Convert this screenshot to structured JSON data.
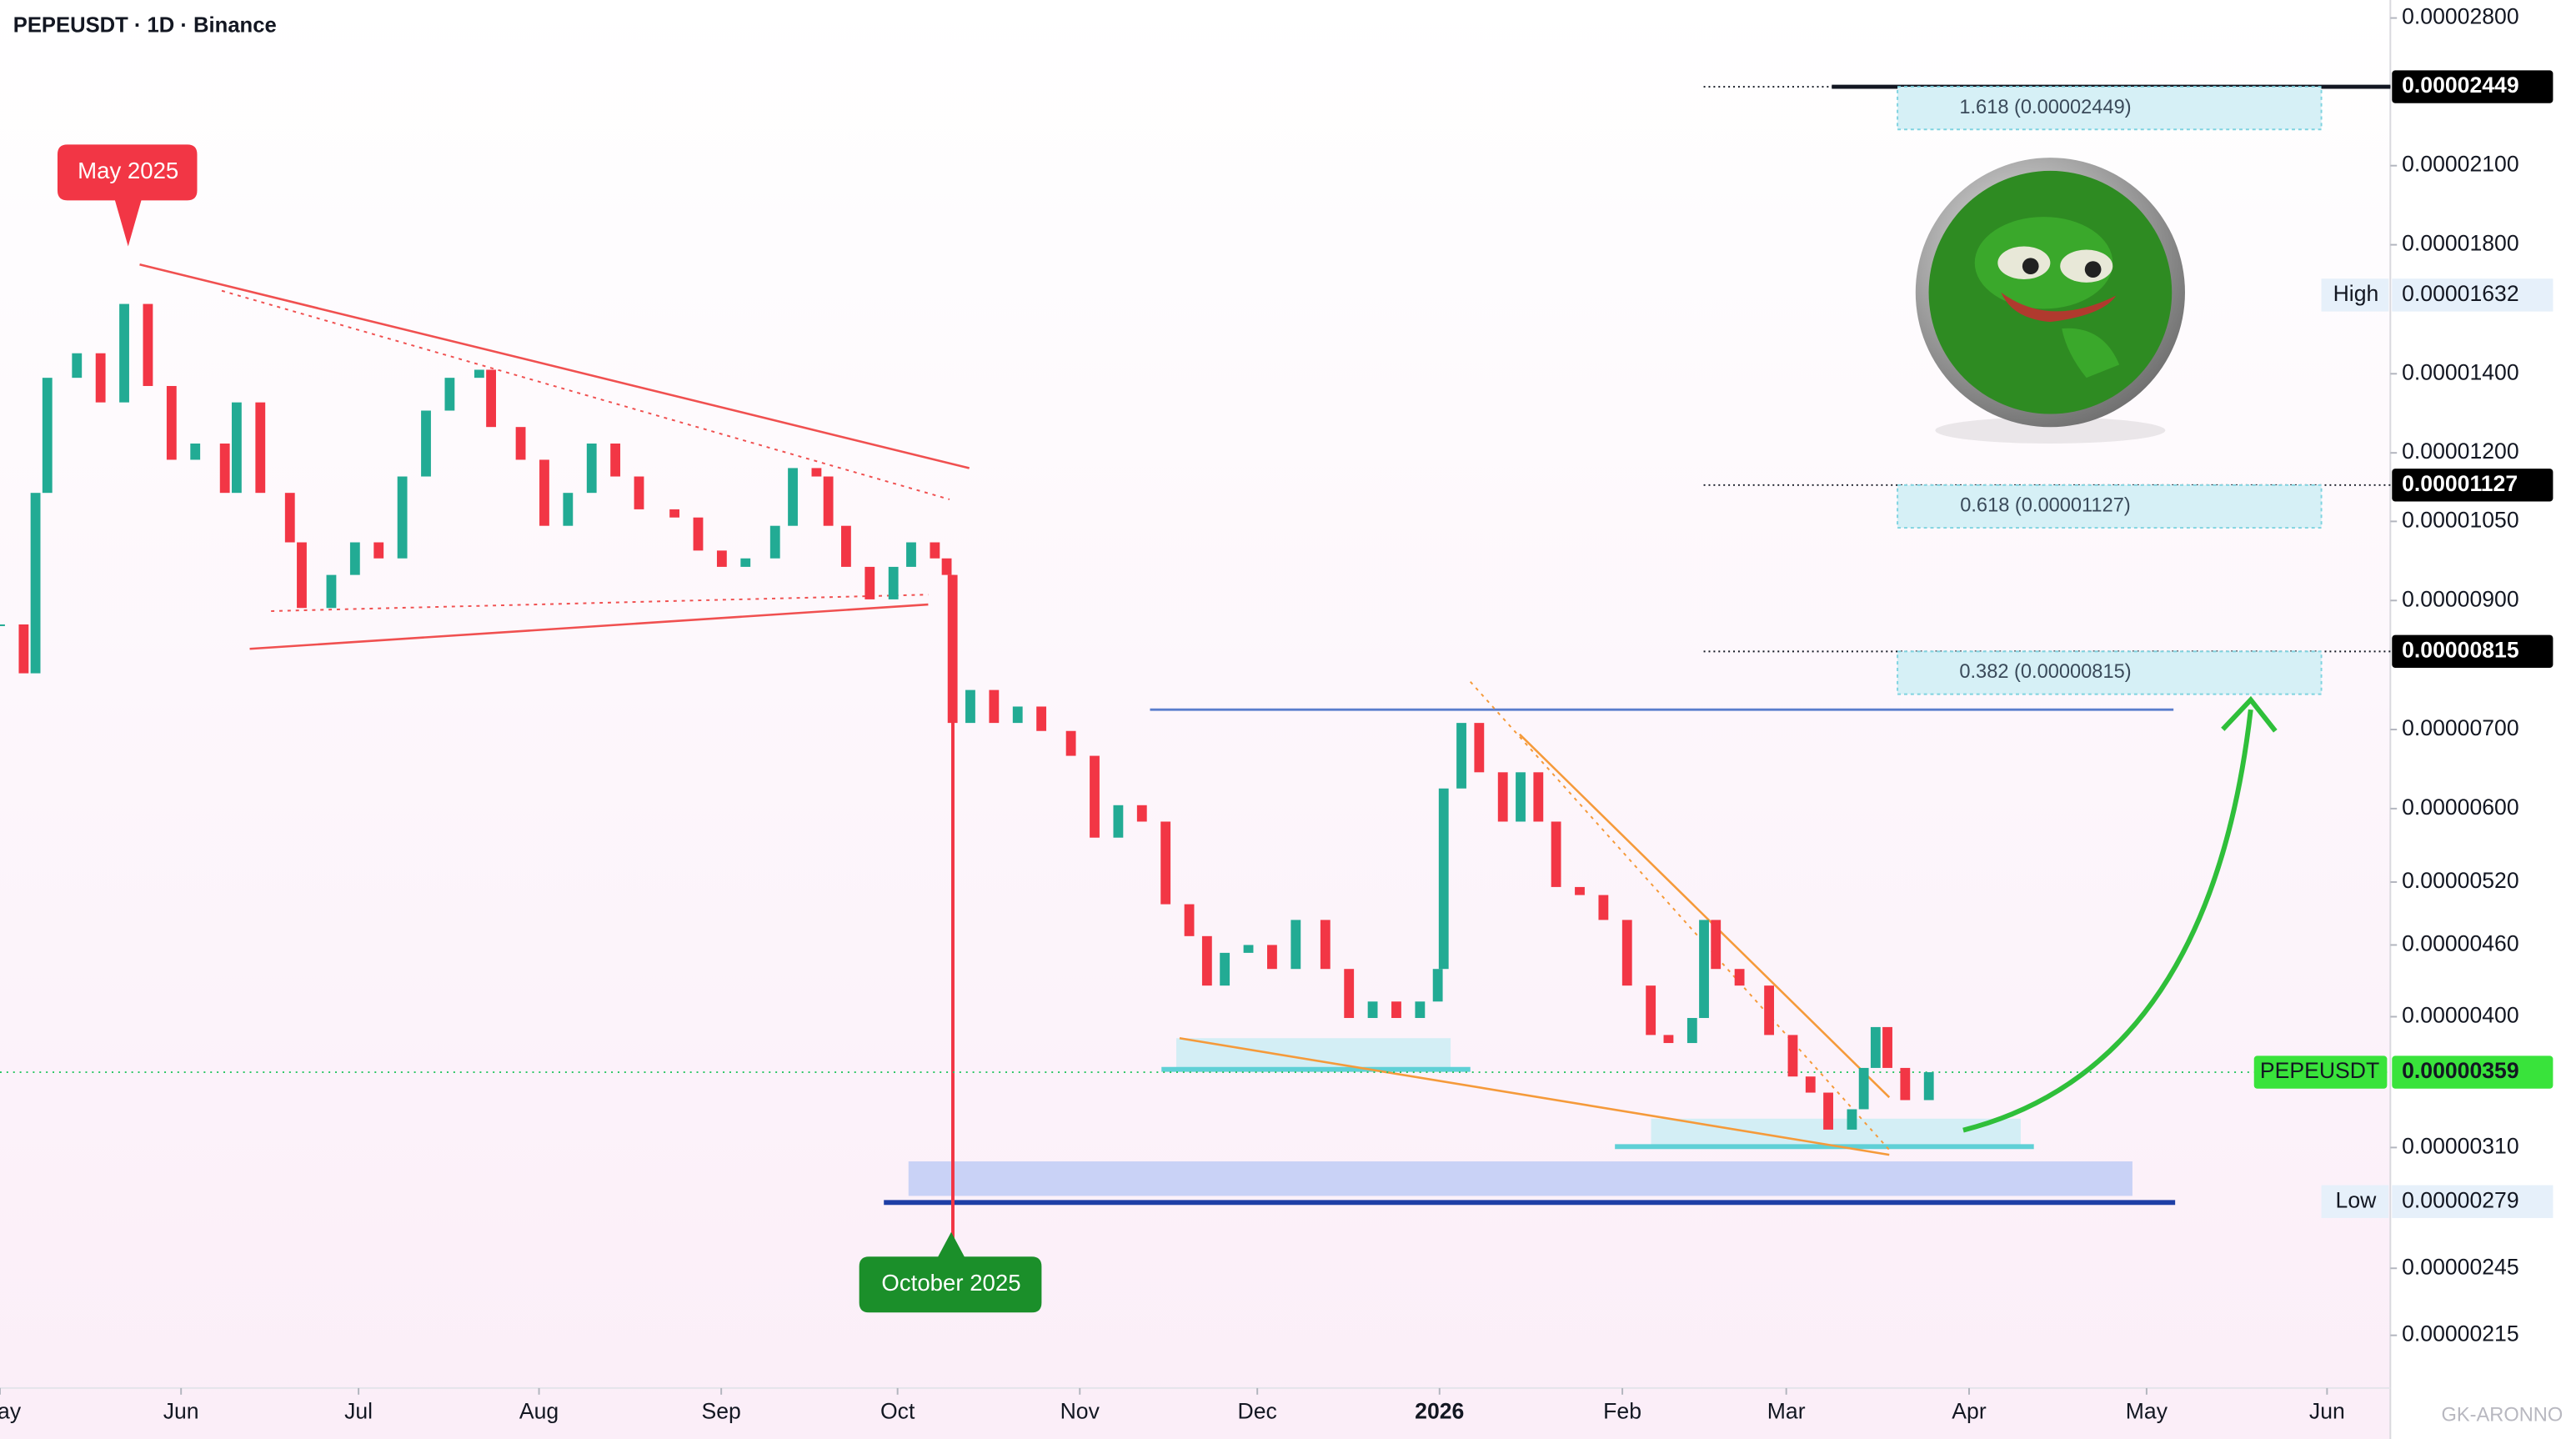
{
  "chart_data": {
    "type": "candlestick",
    "title": "PEPEUSDT · 1D · Binance",
    "log_scale": true,
    "up_color": "#22ab94",
    "down_color": "#f23645",
    "x": [
      0,
      4,
      6,
      8,
      13,
      17,
      21,
      25,
      29,
      33,
      38,
      40,
      44,
      49,
      51,
      56,
      60,
      64,
      68,
      72,
      76,
      81,
      83,
      88,
      92,
      96,
      100,
      104,
      108,
      114,
      118,
      122,
      126,
      131,
      134,
      138,
      140,
      143,
      147,
      151,
      154,
      158,
      160,
      161,
      164,
      168,
      172,
      176,
      181,
      185,
      189,
      193,
      197,
      201,
      204,
      207,
      211,
      215,
      219,
      224,
      228,
      232,
      236,
      240,
      243,
      244,
      247,
      250,
      254,
      257,
      260,
      263,
      267,
      271,
      275,
      279,
      282,
      286,
      288,
      290,
      294,
      299,
      303,
      306,
      309,
      313,
      315,
      317,
      319,
      322,
      326
    ],
    "values": [
      8.59e-06,
      7.81e-06,
      1.11e-05,
      1.389e-05,
      1.457e-05,
      1.324e-05,
      1.604e-05,
      1.367e-05,
      1.184e-05,
      1.222e-05,
      1.11e-05,
      1.324e-05,
      1.11e-05,
      1.008e-05,
      8.87e-06,
      9.46e-06,
      1.008e-05,
      9.77e-06,
      1.146e-05,
      1.303e-05,
      1.389e-05,
      1.411e-05,
      1.262e-05,
      1.184e-05,
      1.041e-05,
      1.11e-05,
      1.222e-05,
      1.146e-05,
      1.075e-05,
      1.058e-05,
      9.92e-06,
      9.61e-06,
      9.77e-06,
      1.041e-05,
      1.165e-05,
      1.146e-05,
      1.041e-05,
      9.61e-06,
      9.02e-06,
      9.61e-06,
      1.008e-05,
      9.77e-06,
      9.46e-06,
      7.09e-06,
      7.56e-06,
      7.09e-06,
      7.32e-06,
      6.98e-06,
      6.65e-06,
      5.67e-06,
      6.04e-06,
      5.85e-06,
      4.98e-06,
      4.68e-06,
      4.25e-06,
      4.53e-06,
      4.6e-06,
      4.39e-06,
      4.83e-06,
      4.39e-06,
      3.99e-06,
      4.12e-06,
      3.99e-06,
      4.12e-06,
      4.39e-06,
      6.24e-06,
      7.09e-06,
      6.44e-06,
      5.85e-06,
      6.44e-06,
      5.85e-06,
      5.15e-06,
      5.07e-06,
      4.83e-06,
      4.25e-06,
      3.86e-06,
      3.8e-06,
      3.99e-06,
      4.83e-06,
      4.39e-06,
      4.25e-06,
      3.86e-06,
      3.56e-06,
      3.45e-06,
      3.21e-06,
      3.34e-06,
      3.62e-06,
      3.92e-06,
      3.62e-06,
      3.4e-06,
      3.59e-06
    ],
    "xlim": [
      0,
      404
    ],
    "xticks": [
      {
        "value": 0,
        "label": "May"
      },
      {
        "value": 30.6,
        "label": "Jun"
      },
      {
        "value": 60.6,
        "label": "Jul"
      },
      {
        "value": 91.1,
        "label": "Aug"
      },
      {
        "value": 121.9,
        "label": "Sep"
      },
      {
        "value": 151.7,
        "label": "Oct"
      },
      {
        "value": 182.5,
        "label": "Nov"
      },
      {
        "value": 212.5,
        "label": "Dec"
      },
      {
        "value": 243.3,
        "label": "2026"
      },
      {
        "value": 274.2,
        "label": "Feb"
      },
      {
        "value": 301.9,
        "label": "Mar"
      },
      {
        "value": 332.8,
        "label": "Apr"
      },
      {
        "value": 362.8,
        "label": "May"
      },
      {
        "value": 393.3,
        "label": "Jun"
      }
    ],
    "ylim": [
      1.94e-06,
      2.9e-05
    ],
    "yticks": [
      {
        "value": 2.8e-05,
        "label": "0.00002800"
      },
      {
        "value": 2.1e-05,
        "label": "0.00002100"
      },
      {
        "value": 1.8e-05,
        "label": "0.00001800"
      },
      {
        "value": 1.4e-05,
        "label": "0.00001400"
      },
      {
        "value": 1.2e-05,
        "label": "0.00001200"
      },
      {
        "value": 1.05e-05,
        "label": "0.00001050"
      },
      {
        "value": 9e-06,
        "label": "0.00000900"
      },
      {
        "value": 7e-06,
        "label": "0.00000700"
      },
      {
        "value": 6e-06,
        "label": "0.00000600"
      },
      {
        "value": 5.2e-06,
        "label": "0.00000520"
      },
      {
        "value": 4.6e-06,
        "label": "0.00000460"
      },
      {
        "value": 4e-06,
        "label": "0.00000400"
      },
      {
        "value": 3.1e-06,
        "label": "0.00000310"
      },
      {
        "value": 2.45e-06,
        "label": "0.00000245"
      },
      {
        "value": 2.15e-06,
        "label": "0.00000215"
      }
    ],
    "fib_levels": [
      {
        "label": "1.618 (0.00002449)",
        "value": 2.449e-05,
        "value_label": "0.00002449"
      },
      {
        "label": "0.618 (0.00001127)",
        "value": 1.127e-05,
        "value_label": "0.00001127"
      },
      {
        "label": "0.382 (0.00000815)",
        "value": 8.15e-06,
        "value_label": "0.00000815"
      }
    ],
    "high": {
      "name": "High",
      "value": 1.632e-05,
      "value_label": "0.00001632"
    },
    "low": {
      "name": "Low",
      "value": 2.79e-06,
      "value_label": "0.00000279"
    },
    "last": {
      "name": "PEPEUSDT",
      "value": 3.59e-06,
      "value_label": "0.00000359"
    },
    "annotations": [
      "May 2025",
      "October 2025"
    ],
    "watermark": "GK-ARONNO"
  }
}
